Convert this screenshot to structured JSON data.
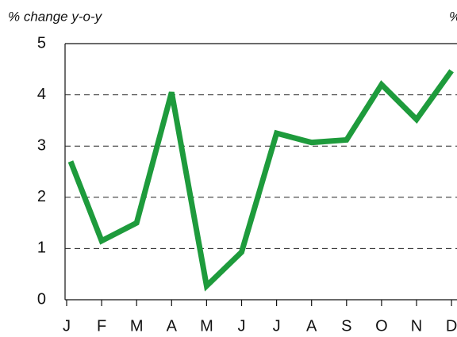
{
  "chart_data": {
    "type": "line",
    "y_label": "% change y-o-y",
    "y2_label": "%",
    "categories": [
      "J",
      "F",
      "M",
      "A",
      "M",
      "J",
      "J",
      "A",
      "S",
      "O",
      "N",
      "D"
    ],
    "values": [
      2.7,
      1.15,
      1.5,
      4.05,
      0.27,
      0.93,
      3.25,
      3.07,
      3.12,
      4.2,
      3.52,
      4.47
    ],
    "color": "#1e9b3c",
    "ylim": [
      0,
      5
    ],
    "yticks": [
      0,
      1,
      2,
      3,
      4,
      5
    ],
    "grid": true
  }
}
